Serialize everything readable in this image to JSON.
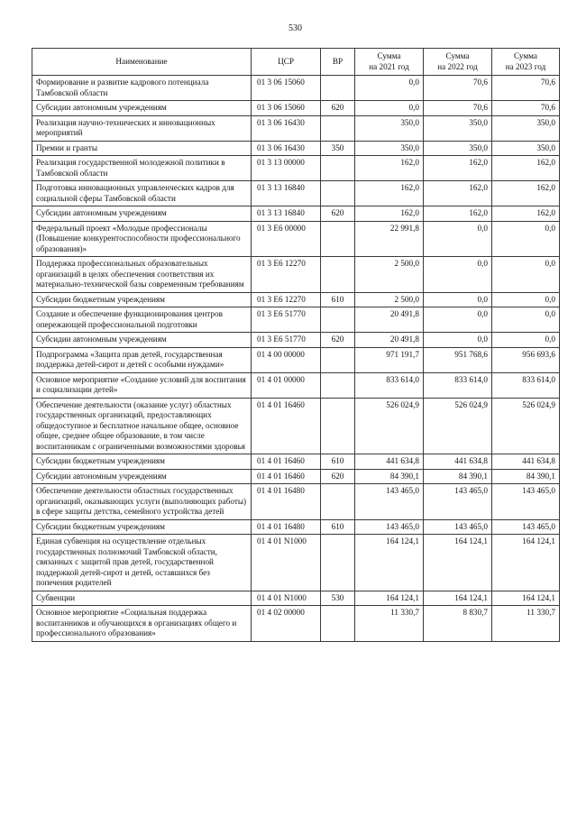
{
  "page": {
    "number": "530"
  },
  "table": {
    "headers": [
      {
        "id": "name",
        "label": "Наименование"
      },
      {
        "id": "csr",
        "label": "ЦСР"
      },
      {
        "id": "vr",
        "label": "ВР"
      },
      {
        "id": "sum-2021",
        "label": "Сумма\nна 2021 год"
      },
      {
        "id": "sum-2022",
        "label": "Сумма\nна 2022 год"
      },
      {
        "id": "sum-2023",
        "label": "Сумма\nна 2023 год"
      }
    ],
    "rows": [
      {
        "name": "Формирование и развитие кадрового потенциала Тамбовской области",
        "csr": "01 3 06 15060",
        "vr": "",
        "y2021": "0,0",
        "y2022": "70,6",
        "y2023": "70,6"
      },
      {
        "name": "Субсидии автономным учреждениям",
        "csr": "01 3 06 15060",
        "vr": "620",
        "y2021": "0,0",
        "y2022": "70,6",
        "y2023": "70,6"
      },
      {
        "name": "Реализация научно-технических и инновационных мероприятий",
        "csr": "01 3 06 16430",
        "vr": "",
        "y2021": "350,0",
        "y2022": "350,0",
        "y2023": "350,0"
      },
      {
        "name": "Премии и гранты",
        "csr": "01 3 06 16430",
        "vr": "350",
        "y2021": "350,0",
        "y2022": "350,0",
        "y2023": "350,0"
      },
      {
        "name": "Реализация государственной молодежной политики в Тамбовской области",
        "csr": "01 3 13 00000",
        "vr": "",
        "y2021": "162,0",
        "y2022": "162,0",
        "y2023": "162,0"
      },
      {
        "name": "Подготовка инновационных управленческих кадров для социальной сферы Тамбовской области",
        "csr": "01 3 13 16840",
        "vr": "",
        "y2021": "162,0",
        "y2022": "162,0",
        "y2023": "162,0"
      },
      {
        "name": "Субсидии автономным учреждениям",
        "csr": "01 3 13 16840",
        "vr": "620",
        "y2021": "162,0",
        "y2022": "162,0",
        "y2023": "162,0"
      },
      {
        "name": "Федеральный проект «Молодые профессионалы (Повышение конкурентоспособности профессионального образования)»",
        "csr": "01 3 Е6 00000",
        "vr": "",
        "y2021": "22 991,8",
        "y2022": "0,0",
        "y2023": "0,0"
      },
      {
        "name": "Поддержка профессиональных образовательных организаций в целях обеспечения соответствия их материально-технической базы современным требованиям",
        "csr": "01 3 Е6 12270",
        "vr": "",
        "y2021": "2 500,0",
        "y2022": "0,0",
        "y2023": "0,0"
      },
      {
        "name": "Субсидии бюджетным учреждениям",
        "csr": "01 3 Е6 12270",
        "vr": "610",
        "y2021": "2 500,0",
        "y2022": "0,0",
        "y2023": "0,0"
      },
      {
        "name": "Создание и обеспечение функционирования центров опережающей профессиональной подготовки",
        "csr": "01 3 Е6 51770",
        "vr": "",
        "y2021": "20 491,8",
        "y2022": "0,0",
        "y2023": "0,0"
      },
      {
        "name": "Субсидии автономным учреждениям",
        "csr": "01 3 Е6 51770",
        "vr": "620",
        "y2021": "20 491,8",
        "y2022": "0,0",
        "y2023": "0,0"
      },
      {
        "name": "Подпрограмма «Защита прав детей, государственная поддержка детей-сирот и детей с особыми нуждами»",
        "csr": "01 4 00 00000",
        "vr": "",
        "y2021": "971 191,7",
        "y2022": "951 768,6",
        "y2023": "956 693,6"
      },
      {
        "name": "Основное мероприятие «Создание условий для воспитания и социализации детей»",
        "csr": "01 4 01 00000",
        "vr": "",
        "y2021": "833 614,0",
        "y2022": "833 614,0",
        "y2023": "833 614,0"
      },
      {
        "name": "Обеспечение деятельности (оказание услуг) областных государственных организаций, предоставляющих общедоступное и бесплатное начальное общее, основное общее, среднее общее образование, в том числе воспитанникам с ограниченными возможностями здоровья",
        "csr": "01 4 01 16460",
        "vr": "",
        "y2021": "526 024,9",
        "y2022": "526 024,9",
        "y2023": "526 024,9"
      },
      {
        "name": "Субсидии бюджетным учреждениям",
        "csr": "01 4 01 16460",
        "vr": "610",
        "y2021": "441 634,8",
        "y2022": "441 634,8",
        "y2023": "441 634,8"
      },
      {
        "name": "Субсидии автономным учреждениям",
        "csr": "01 4 01 16460",
        "vr": "620",
        "y2021": "84 390,1",
        "y2022": "84 390,1",
        "y2023": "84 390,1"
      },
      {
        "name": "Обеспечение деятельности областных государственных организаций, оказывающих услуги (выполняющих работы) в сфере защиты детства, семейного устройства детей",
        "csr": "01 4 01 16480",
        "vr": "",
        "y2021": "143 465,0",
        "y2022": "143 465,0",
        "y2023": "143 465,0"
      },
      {
        "name": "Субсидии бюджетным учреждениям",
        "csr": "01 4 01 16480",
        "vr": "610",
        "y2021": "143 465,0",
        "y2022": "143 465,0",
        "y2023": "143 465,0"
      },
      {
        "name": "Единая субвенция на осуществление отдельных государственных полномочий Тамбовской области, связанных с защитой прав детей, государственной поддержкой детей-сирот и детей, оставшихся без попечения родителей",
        "csr": "01 4 01 N1000",
        "vr": "",
        "y2021": "164 124,1",
        "y2022": "164 124,1",
        "y2023": "164 124,1"
      },
      {
        "name": "Субвенции",
        "csr": "01 4 01 N1000",
        "vr": "530",
        "y2021": "164 124,1",
        "y2022": "164 124,1",
        "y2023": "164 124,1"
      },
      {
        "name": "Основное мероприятие «Социальная поддержка воспитанников и обучающихся в организациях общего и профессионального образования»",
        "csr": "01 4 02 00000",
        "vr": "",
        "y2021": "11 330,7",
        "y2022": "8 830,7",
        "y2023": "11 330,7"
      }
    ]
  }
}
